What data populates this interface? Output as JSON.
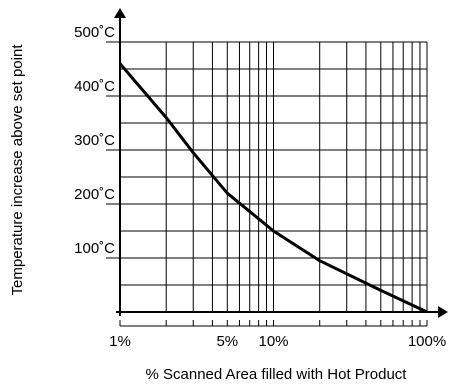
{
  "chart_data": {
    "type": "line",
    "xlabel": "% Scanned Area filled with Hot Product",
    "ylabel": "Temperature increase above set point",
    "x_scale": "log",
    "xlim": [
      1,
      100
    ],
    "ylim": [
      0,
      500
    ],
    "x_ticks": [
      {
        "value": 1,
        "label": "1%"
      },
      {
        "value": 5,
        "label": "5%"
      },
      {
        "value": 10,
        "label": "10%"
      },
      {
        "value": 100,
        "label": "100%"
      }
    ],
    "y_ticks": [
      {
        "value": 100,
        "label": "100˚C"
      },
      {
        "value": 200,
        "label": "200˚C"
      },
      {
        "value": 300,
        "label": "300˚C"
      },
      {
        "value": 400,
        "label": "400˚C"
      },
      {
        "value": 500,
        "label": "500˚C"
      }
    ],
    "grid": true,
    "series": [
      {
        "x": [
          1,
          2,
          3,
          5,
          10,
          20,
          50,
          100
        ],
        "y": [
          460,
          360,
          295,
          220,
          150,
          95,
          40,
          0
        ],
        "color": "#000000"
      }
    ]
  }
}
